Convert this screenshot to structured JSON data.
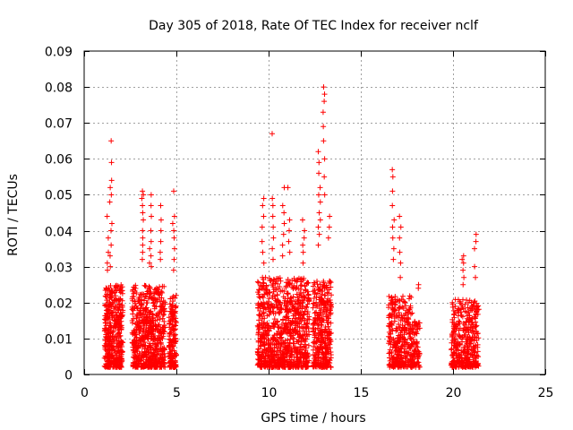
{
  "chart_data": {
    "type": "scatter",
    "title": "Day 305 of 2018, Rate Of TEC Index for receiver nclf",
    "xlabel": "GPS time / hours",
    "ylabel": "ROTI / TECUs",
    "xlim": [
      0,
      25
    ],
    "ylim": [
      0,
      0.09
    ],
    "xticks": [
      0,
      5,
      10,
      15,
      20,
      25
    ],
    "yticks": [
      0,
      0.01,
      0.02,
      0.03,
      0.04,
      0.05,
      0.06,
      0.07,
      0.08,
      0.09
    ],
    "xtick_labels": [
      "0",
      "5",
      "10",
      "15",
      "20",
      "25"
    ],
    "ytick_labels": [
      "0",
      "0.01",
      "0.02",
      "0.03",
      "0.04",
      "0.05",
      "0.06",
      "0.07",
      "0.08",
      "0.09"
    ],
    "grid": true,
    "marker": "plus",
    "series": [
      {
        "name": "ROTI",
        "color": "#ff0000",
        "clusters": [
          {
            "x_range": [
              1.1,
              2.1
            ],
            "y_range": [
              0.002,
              0.025
            ],
            "count": 420
          },
          {
            "x_range": [
              2.6,
              4.4
            ],
            "y_range": [
              0.002,
              0.025
            ],
            "count": 620
          },
          {
            "x_range": [
              4.6,
              5.0
            ],
            "y_range": [
              0.002,
              0.022
            ],
            "count": 160
          },
          {
            "x_range": [
              9.4,
              12.2
            ],
            "y_range": [
              0.002,
              0.027
            ],
            "count": 900
          },
          {
            "x_range": [
              12.4,
              13.4
            ],
            "y_range": [
              0.002,
              0.026
            ],
            "count": 360
          },
          {
            "x_range": [
              16.5,
              17.8
            ],
            "y_range": [
              0.002,
              0.022
            ],
            "count": 340
          },
          {
            "x_range": [
              17.8,
              18.2
            ],
            "y_range": [
              0.002,
              0.015
            ],
            "count": 70
          },
          {
            "x_range": [
              19.9,
              21.4
            ],
            "y_range": [
              0.002,
              0.021
            ],
            "count": 380
          }
        ],
        "spikes": [
          {
            "x": 1.45,
            "y_values": [
              0.065,
              0.059,
              0.054,
              0.052,
              0.05,
              0.048,
              0.042,
              0.04,
              0.036,
              0.033,
              0.03
            ]
          },
          {
            "x": 1.3,
            "y_values": [
              0.044,
              0.038,
              0.034,
              0.031,
              0.029
            ]
          },
          {
            "x": 3.15,
            "y_values": [
              0.051,
              0.05,
              0.049,
              0.047,
              0.045,
              0.043,
              0.04,
              0.038,
              0.036,
              0.034,
              0.032
            ]
          },
          {
            "x": 3.6,
            "y_values": [
              0.05,
              0.047,
              0.044,
              0.04,
              0.037,
              0.035,
              0.033,
              0.031,
              0.03
            ]
          },
          {
            "x": 4.15,
            "y_values": [
              0.047,
              0.043,
              0.04,
              0.037,
              0.034,
              0.032
            ]
          },
          {
            "x": 4.85,
            "y_values": [
              0.051,
              0.044,
              0.042,
              0.04,
              0.038,
              0.035,
              0.032,
              0.029
            ]
          },
          {
            "x": 9.7,
            "y_values": [
              0.049,
              0.047,
              0.044,
              0.041,
              0.037,
              0.034,
              0.031
            ]
          },
          {
            "x": 10.25,
            "y_values": [
              0.067,
              0.049,
              0.047,
              0.044,
              0.041,
              0.038,
              0.035,
              0.032
            ]
          },
          {
            "x": 10.8,
            "y_values": [
              0.052,
              0.047,
              0.045,
              0.042,
              0.039,
              0.036,
              0.033
            ]
          },
          {
            "x": 11.1,
            "y_values": [
              0.052,
              0.043,
              0.04,
              0.037,
              0.034
            ]
          },
          {
            "x": 11.9,
            "y_values": [
              0.043,
              0.04,
              0.038,
              0.036,
              0.034,
              0.031
            ]
          },
          {
            "x": 12.75,
            "y_values": [
              0.062,
              0.059,
              0.056,
              0.052,
              0.05,
              0.048,
              0.045,
              0.043,
              0.041,
              0.039,
              0.036
            ]
          },
          {
            "x": 13.0,
            "y_values": [
              0.08,
              0.078,
              0.076,
              0.073,
              0.069,
              0.065,
              0.06,
              0.055,
              0.05
            ]
          },
          {
            "x": 13.3,
            "y_values": [
              0.044,
              0.041,
              0.038
            ]
          },
          {
            "x": 16.75,
            "y_values": [
              0.057,
              0.055,
              0.051,
              0.047,
              0.043,
              0.041,
              0.038,
              0.035,
              0.032
            ]
          },
          {
            "x": 17.15,
            "y_values": [
              0.044,
              0.041,
              0.038,
              0.034,
              0.031,
              0.027
            ]
          },
          {
            "x": 18.15,
            "y_values": [
              0.025,
              0.024
            ]
          },
          {
            "x": 20.55,
            "y_values": [
              0.033,
              0.032,
              0.031,
              0.029,
              0.027,
              0.025
            ]
          },
          {
            "x": 21.2,
            "y_values": [
              0.039,
              0.037,
              0.035,
              0.03,
              0.027
            ]
          }
        ]
      }
    ]
  }
}
